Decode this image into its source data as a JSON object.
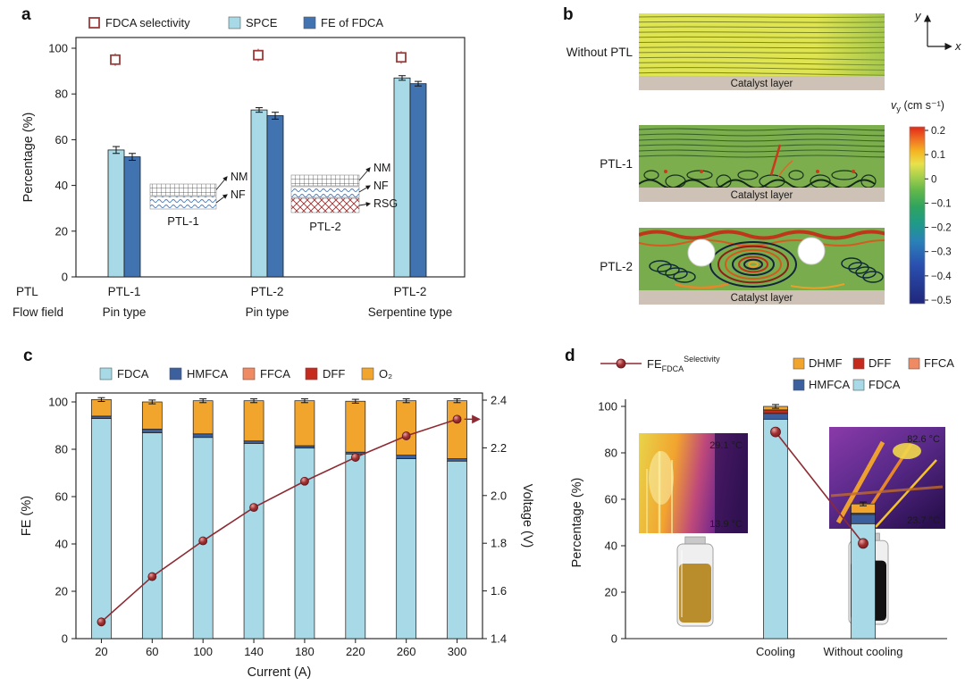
{
  "chart_data": [
    {
      "id": "a",
      "type": "bar",
      "ylabel": "Percentage (%)",
      "ylim": [
        0,
        100
      ],
      "yticks": [
        0,
        20,
        40,
        60,
        80,
        100
      ],
      "row_headers": [
        "PTL",
        "Flow field"
      ],
      "groups": [
        {
          "ptl": "PTL-1",
          "flow_field": "Pin type",
          "spce": 55.5,
          "spce_err": 1.5,
          "fe_of_fdca": 52.5,
          "fe_err": 1.5,
          "fdca_selectivity": 95
        },
        {
          "ptl": "PTL-2",
          "flow_field": "Pin type",
          "spce": 73,
          "spce_err": 1,
          "fe_of_fdca": 70.5,
          "fe_err": 1.5,
          "fdca_selectivity": 97
        },
        {
          "ptl": "PTL-2",
          "flow_field": "Serpentine type",
          "spce": 87,
          "spce_err": 1,
          "fe_of_fdca": 84.5,
          "fe_err": 1,
          "fdca_selectivity": 96
        }
      ]
    },
    {
      "id": "c",
      "type": "stacked-bar+line",
      "xlabel": "Current (A)",
      "ylabel_left": "FE (%)",
      "ylabel_right": "Voltage (V)",
      "ylim_left": [
        0,
        100
      ],
      "ylim_right": [
        1.4,
        2.4
      ],
      "yticks_left": [
        0,
        20,
        40,
        60,
        80,
        100
      ],
      "yticks_right": [
        "1.4",
        "1.6",
        "1.8",
        "2.0",
        "2.2",
        "2.4"
      ],
      "categories": [
        20,
        60,
        100,
        140,
        180,
        220,
        260,
        300
      ],
      "series": [
        {
          "name": "FDCA",
          "values": [
            93,
            87,
            85,
            82.5,
            80.5,
            78,
            76,
            75
          ]
        },
        {
          "name": "HMFCA",
          "values": [
            1,
            1.5,
            1.5,
            1,
            1,
            0.8,
            1.5,
            1
          ]
        },
        {
          "name": "FFCA",
          "values": [
            0,
            0,
            0,
            0,
            0,
            0,
            0,
            0
          ]
        },
        {
          "name": "DFF",
          "values": [
            0,
            0,
            0,
            0,
            0,
            0,
            0,
            0
          ]
        },
        {
          "name": "O₂",
          "values": [
            7,
            11.5,
            14,
            17,
            19,
            21.5,
            23,
            24.5
          ]
        }
      ],
      "line_series": {
        "name": "Voltage",
        "values": [
          1.47,
          1.66,
          1.81,
          1.95,
          2.06,
          2.16,
          2.25,
          2.32
        ]
      }
    },
    {
      "id": "d",
      "type": "stacked-bar+points",
      "ylabel": "Percentage (%)",
      "ylim": [
        0,
        100
      ],
      "yticks": [
        0,
        20,
        40,
        60,
        80,
        100
      ],
      "categories": [
        "Cooling",
        "Without cooling"
      ],
      "series": [
        {
          "name": "FDCA",
          "values": [
            94.5,
            49.5
          ]
        },
        {
          "name": "HMFCA",
          "values": [
            2.5,
            4
          ]
        },
        {
          "name": "FFCA",
          "values": [
            0,
            0
          ]
        },
        {
          "name": "DFF",
          "values": [
            1.5,
            0.5
          ]
        },
        {
          "name": "DHMF",
          "values": [
            1.5,
            4
          ]
        }
      ],
      "fe_fdca_selectivity": [
        89,
        41
      ]
    }
  ],
  "panel_a": {
    "label": "a",
    "legend": [
      {
        "name": "FDCA selectivity",
        "marker": "open-square",
        "color": "#9c3a3a"
      },
      {
        "name": "SPCE",
        "marker": "square",
        "color": "#a7d9e6"
      },
      {
        "name": "FE of FDCA",
        "marker": "square",
        "color": "#4273b1"
      }
    ],
    "insets": [
      {
        "name": "PTL-1",
        "layers": [
          "NM",
          "NF"
        ]
      },
      {
        "name": "PTL-2",
        "layers": [
          "NM",
          "NF",
          "RSG"
        ]
      }
    ]
  },
  "panel_b": {
    "label": "b",
    "axis_x": "x",
    "axis_y": "y",
    "rows": [
      {
        "name": "Without PTL",
        "caption": "Catalyst layer"
      },
      {
        "name": "PTL-1",
        "caption": "Catalyst layer"
      },
      {
        "name": "PTL-2",
        "caption": "Catalyst layer"
      }
    ],
    "colorbar": {
      "label_main": "v",
      "label_sub": "y",
      "label_rest": " (cm s⁻¹)",
      "ticks": [
        "0.2",
        "0.1",
        "0",
        "−0.1",
        "−0.2",
        "−0.3",
        "−0.4",
        "−0.5"
      ]
    }
  },
  "panel_c": {
    "label": "c",
    "legend": [
      {
        "name": "FDCA",
        "color": "#a7d9e6"
      },
      {
        "name": "HMFCA",
        "color": "#3c5f9e"
      },
      {
        "name": "FFCA",
        "color": "#f08a63"
      },
      {
        "name": "DFF",
        "color": "#c62a1c"
      },
      {
        "name": "O₂",
        "color": "#f2a52d"
      }
    ]
  },
  "panel_d": {
    "label": "d",
    "legend_line": {
      "main": "FE",
      "sub": "FDCA",
      "sup": "Selectivity",
      "color": "#8e2a33"
    },
    "legend": [
      {
        "name": "DHMF",
        "color": "#f2a52d"
      },
      {
        "name": "DFF",
        "color": "#c62a1c"
      },
      {
        "name": "FFCA",
        "color": "#f08a63"
      },
      {
        "name": "HMFCA",
        "color": "#3c5f9e"
      },
      {
        "name": "FDCA",
        "color": "#a7d9e6"
      }
    ],
    "insets": {
      "thermal_left": {
        "t_top": "29.1 °C",
        "t_bottom": "13.9 °C"
      },
      "thermal_right": {
        "t_top": "82.6 °C",
        "t_bottom": "23.7 °C"
      }
    }
  }
}
